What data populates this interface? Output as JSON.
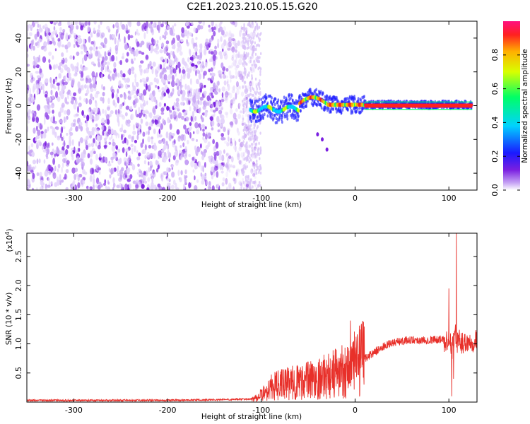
{
  "title": "C2E1.2023.210.05.15.G20",
  "chart_data": [
    {
      "type": "heatmap",
      "xlabel": "Height of straight line (km)",
      "ylabel": "Frequency (Hz)",
      "xlim": [
        -350,
        130
      ],
      "ylim": [
        -50,
        50
      ],
      "x_ticks": [
        -300,
        -200,
        -100,
        0,
        100
      ],
      "y_ticks": [
        -40,
        -20,
        0,
        20,
        40
      ],
      "colorbar": {
        "label": "Normalized spectral amplitude",
        "range": [
          0,
          1
        ],
        "ticks": [
          "0.0",
          "0.2",
          "0.4",
          "0.6",
          "0.8"
        ],
        "colormap": [
          "#ffffff",
          "#c9a8f5",
          "#7a1fe0",
          "#1a1aff",
          "#00d2ff",
          "#00ff66",
          "#d8ff00",
          "#ffb000",
          "#ff2020",
          "#ff1080"
        ]
      },
      "features": {
        "noise_region_x": [
          -350,
          -110
        ],
        "carrier_line_x": [
          -110,
          125
        ],
        "carrier_freq_hz": 0,
        "trail_points": [
          [
            -40,
            -17
          ],
          [
            -35,
            -20
          ],
          [
            -30,
            -26
          ]
        ]
      }
    },
    {
      "type": "line",
      "xlabel": "Height of straight line (km)",
      "ylabel": "SNR (10 * v/v)",
      "scale_label": "(x10",
      "scale_exponent": "4",
      "scale_suffix": ")",
      "xlim": [
        -350,
        130
      ],
      "ylim": [
        0,
        29000
      ],
      "x_ticks": [
        -300,
        -200,
        -100,
        0,
        100
      ],
      "y_ticks": [
        0.5,
        1.0,
        1.5,
        2.0,
        2.5
      ],
      "y_tick_labels": [
        "0.5",
        "1.0",
        "1.5",
        "2.0",
        "2.5"
      ],
      "line_color": "#e8302a",
      "series": [
        {
          "x": [
            -350,
            -300,
            -250,
            -200,
            -150,
            -110,
            -100,
            -90,
            -80,
            -70,
            -60,
            -50,
            -40,
            -30,
            -20,
            -10,
            -5,
            0,
            10,
            20,
            30,
            40,
            50,
            60,
            70,
            80,
            90,
            95,
            100,
            103,
            105,
            107,
            108,
            110,
            115,
            120,
            130
          ],
          "y": [
            300,
            300,
            300,
            300,
            400,
            500,
            1200,
            2500,
            3000,
            3200,
            3500,
            3800,
            4000,
            4500,
            5000,
            5500,
            6000,
            6500,
            7500,
            8500,
            9500,
            10200,
            10500,
            10700,
            10600,
            10700,
            10800,
            10500,
            11000,
            9000,
            10500,
            12000,
            10000,
            10500,
            10200,
            10400,
            10600
          ],
          "spikes": [
            [
              -5,
              14000
            ],
            [
              100,
              19500
            ],
            [
              105,
              4000
            ],
            [
              108,
              29000
            ],
            [
              103,
              1000
            ]
          ]
        }
      ]
    }
  ]
}
